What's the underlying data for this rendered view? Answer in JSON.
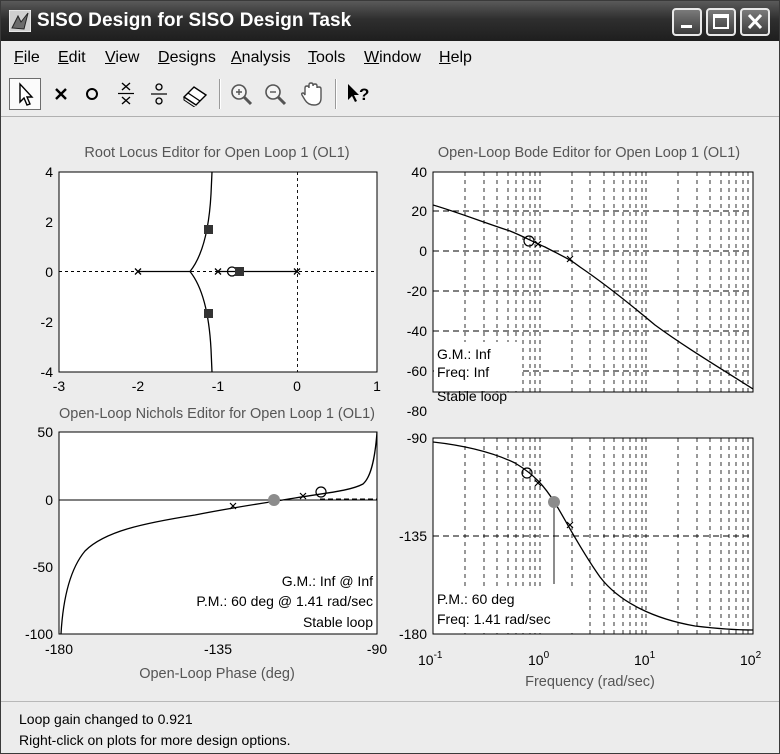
{
  "window": {
    "title": "SISO Design for SISO Design Task"
  },
  "menu": [
    {
      "label": "File",
      "key": "F",
      "rest": "ile"
    },
    {
      "label": "Edit",
      "key": "E",
      "rest": "dit"
    },
    {
      "label": "View",
      "key": "V",
      "rest": "iew"
    },
    {
      "label": "Designs",
      "key": "D",
      "rest": "esigns"
    },
    {
      "label": "Analysis",
      "key": "A",
      "rest": "nalysis"
    },
    {
      "label": "Tools",
      "key": "T",
      "rest": "ools"
    },
    {
      "label": "Window",
      "key": "W",
      "rest": "indow"
    },
    {
      "label": "Help",
      "key": "H",
      "rest": "elp"
    }
  ],
  "toolbar": {
    "buttons": [
      "select-arrow-icon",
      "add-pole-icon",
      "add-zero-icon",
      "add-pole-pair-icon",
      "add-zero-pair-icon",
      "eraser-icon",
      "zoom-in-icon",
      "zoom-out-icon",
      "pan-hand-icon",
      "whats-this-help-icon"
    ]
  },
  "plots": {
    "root_locus": {
      "title": "Root Locus Editor for Open Loop 1 (OL1)",
      "xticks": [
        "-3",
        "-2",
        "-1",
        "0",
        "1"
      ],
      "yticks": [
        "4",
        "2",
        "0",
        "-2",
        "-4"
      ]
    },
    "bode_mag": {
      "title": "Open-Loop Bode Editor for Open Loop 1 (OL1)",
      "yticks": [
        "40",
        "20",
        "0",
        "-20",
        "-40",
        "-60",
        "-80"
      ],
      "gm": "G.M.: Inf",
      "freq": "Freq: Inf",
      "stable": "Stable loop"
    },
    "nichols": {
      "title": "Open-Loop Nichols Editor for Open Loop 1 (OL1)",
      "xticks": [
        "-180",
        "-135",
        "-90"
      ],
      "yticks": [
        "50",
        "0",
        "-50",
        "-100"
      ],
      "xlabel": "Open-Loop Phase (deg)",
      "gm": "G.M.: Inf @ Inf",
      "pm": "P.M.: 60 deg @ 1.41 rad/sec",
      "stable": "Stable loop"
    },
    "bode_phase": {
      "yticks": [
        "-90",
        "-135",
        "-180"
      ],
      "xticks_base": [
        "10",
        "10",
        "10",
        "10"
      ],
      "xticks_exp": [
        "-1",
        "0",
        "1",
        "2"
      ],
      "xlabel": "Frequency (rad/sec)",
      "pm": "P.M.: 60 deg",
      "freq": "Freq: 1.41 rad/sec"
    }
  },
  "status": {
    "line1": "Loop gain changed to 0.921",
    "line2": "Right-click on plots for more design options."
  },
  "colors": {
    "curve": "#000000",
    "grid": "#000000",
    "marker_fill": "#8c8c8c",
    "titlebar": "#2f2f2f"
  }
}
